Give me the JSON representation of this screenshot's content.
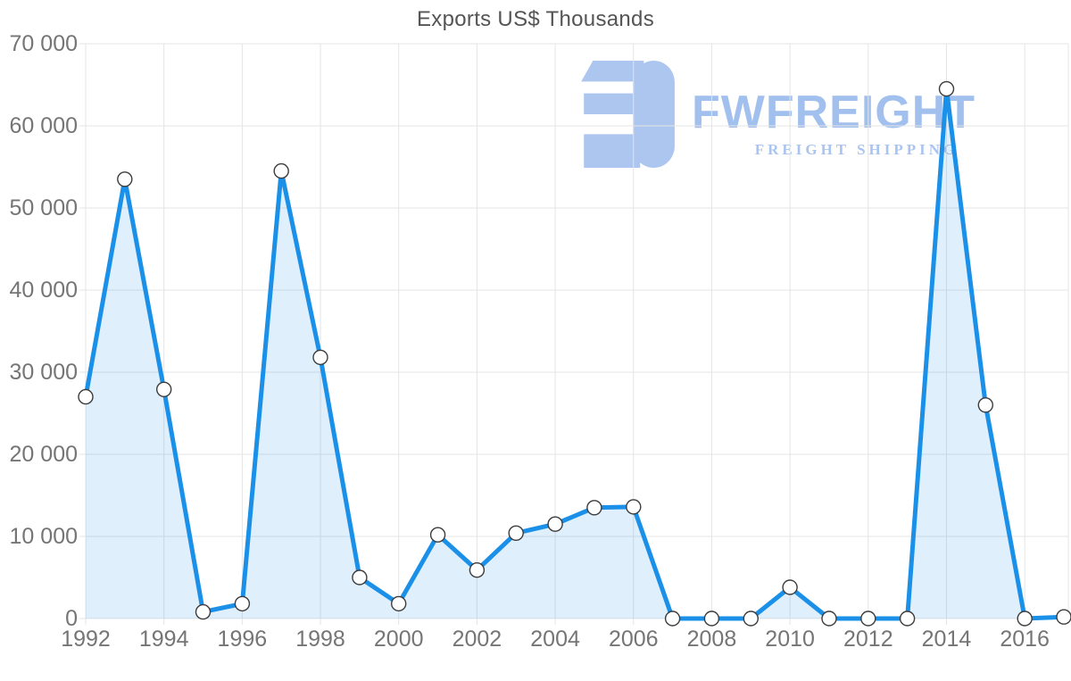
{
  "title": "Exports US$ Thousands",
  "watermark": {
    "brand": "FWFREIGHT",
    "tagline": "FREIGHT SHIPPING",
    "logo_color": "#adc6ef",
    "brand_color": "#a2c0ee",
    "tagline_color": "#a9c4f1"
  },
  "chart_data": {
    "type": "area",
    "title": "Exports US$ Thousands",
    "x": [
      1992,
      1993,
      1994,
      1995,
      1996,
      1997,
      1998,
      1999,
      2000,
      2001,
      2002,
      2003,
      2004,
      2005,
      2006,
      2007,
      2008,
      2009,
      2010,
      2011,
      2012,
      2013,
      2014,
      2015,
      2016,
      2017
    ],
    "values": [
      27000,
      53500,
      27900,
      800,
      1800,
      54500,
      31800,
      5000,
      1800,
      10200,
      5900,
      10400,
      11500,
      13500,
      13600,
      0,
      0,
      0,
      3800,
      0,
      0,
      0,
      64500,
      26000,
      0,
      200
    ],
    "xlabel": "",
    "ylabel": "",
    "ylim": [
      0,
      70000
    ],
    "ytick_values": [
      0,
      10000,
      20000,
      30000,
      40000,
      50000,
      60000,
      70000
    ],
    "ytick_labels": [
      "0",
      "10 000",
      "20 000",
      "30 000",
      "40 000",
      "50 000",
      "60 000",
      "70 000"
    ],
    "xtick_values": [
      1992,
      1994,
      1996,
      1998,
      2000,
      2002,
      2004,
      2006,
      2008,
      2010,
      2012,
      2014,
      2016
    ],
    "xtick_labels": [
      "1992",
      "1994",
      "1996",
      "1998",
      "2000",
      "2002",
      "2004",
      "2006",
      "2008",
      "2010",
      "2012",
      "2014",
      "2016"
    ],
    "grid": true,
    "legend": "none",
    "line_color": "#1a90e8",
    "fill_color": "rgba(26,144,232,0.14)",
    "grid_color": "#e4e4e4",
    "axis_text_color": "#757575",
    "title_color": "#555555",
    "marker_fill": "#ffffff",
    "marker_stroke": "#3c3c3c"
  }
}
